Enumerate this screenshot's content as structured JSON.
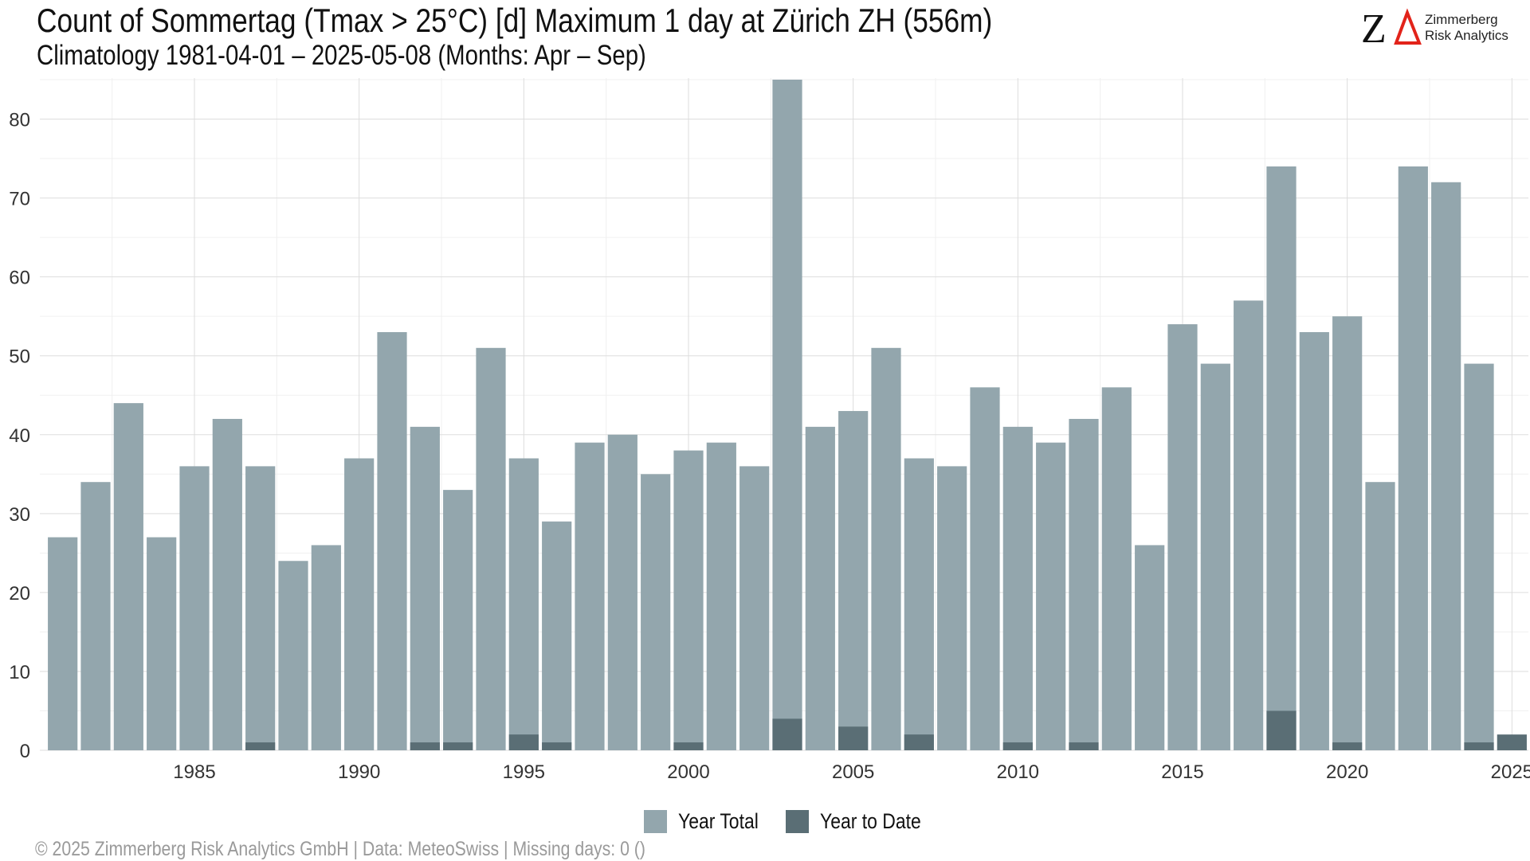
{
  "header": {
    "title": "Count of Sommertag (Tmax > 25°C) [d] Maximum 1 day at Zürich  ZH (556m)",
    "subtitle": "Climatology 1981-04-01 – 2025-05-08 (Months: Apr – Sep)"
  },
  "logo": {
    "mark": "ZΔ",
    "line1": "Zimmerberg",
    "line2": "Risk Analytics",
    "color_z": "#111111",
    "color_delta": "#e2231a"
  },
  "legend": {
    "items": [
      {
        "label": "Year Total",
        "color": "#93a6ad"
      },
      {
        "label": "Year to Date",
        "color": "#5a6e75"
      }
    ]
  },
  "footer": {
    "text": "©  2025 Zimmerberg Risk Analytics GmbH | Data: MeteoSwiss | Missing days: 0 ()"
  },
  "chart_data": {
    "type": "bar",
    "title": "Count of Sommertag (Tmax > 25°C) [d] Maximum 1 day at Zürich  ZH (556m)",
    "xlabel": "",
    "ylabel": "",
    "ylim": [
      0,
      85
    ],
    "xlim": [
      1980.5,
      2025.5
    ],
    "yticks": [
      0,
      10,
      20,
      30,
      40,
      50,
      60,
      70,
      80
    ],
    "xticks": [
      1985,
      1990,
      1995,
      2000,
      2005,
      2010,
      2015,
      2020,
      2025
    ],
    "grid": true,
    "legend_position": "bottom",
    "categories": [
      1981,
      1982,
      1983,
      1984,
      1985,
      1986,
      1987,
      1988,
      1989,
      1990,
      1991,
      1992,
      1993,
      1994,
      1995,
      1996,
      1997,
      1998,
      1999,
      2000,
      2001,
      2002,
      2003,
      2004,
      2005,
      2006,
      2007,
      2008,
      2009,
      2010,
      2011,
      2012,
      2013,
      2014,
      2015,
      2016,
      2017,
      2018,
      2019,
      2020,
      2021,
      2022,
      2023,
      2024,
      2025
    ],
    "series": [
      {
        "name": "Year Total",
        "color": "#93a6ad",
        "values": [
          27,
          34,
          44,
          27,
          36,
          42,
          36,
          24,
          26,
          37,
          53,
          41,
          33,
          51,
          37,
          29,
          39,
          40,
          35,
          38,
          39,
          36,
          85,
          41,
          43,
          51,
          37,
          36,
          46,
          41,
          39,
          42,
          46,
          26,
          54,
          49,
          57,
          74,
          53,
          55,
          34,
          74,
          72,
          49,
          0
        ]
      },
      {
        "name": "Year to Date",
        "color": "#5a6e75",
        "values": [
          0,
          0,
          0,
          0,
          0,
          0,
          1,
          0,
          0,
          0,
          0,
          1,
          1,
          0,
          2,
          1,
          0,
          0,
          0,
          1,
          0,
          0,
          4,
          0,
          3,
          0,
          2,
          0,
          0,
          1,
          0,
          1,
          0,
          0,
          0,
          0,
          0,
          5,
          0,
          1,
          0,
          0,
          0,
          1,
          2
        ]
      }
    ]
  }
}
